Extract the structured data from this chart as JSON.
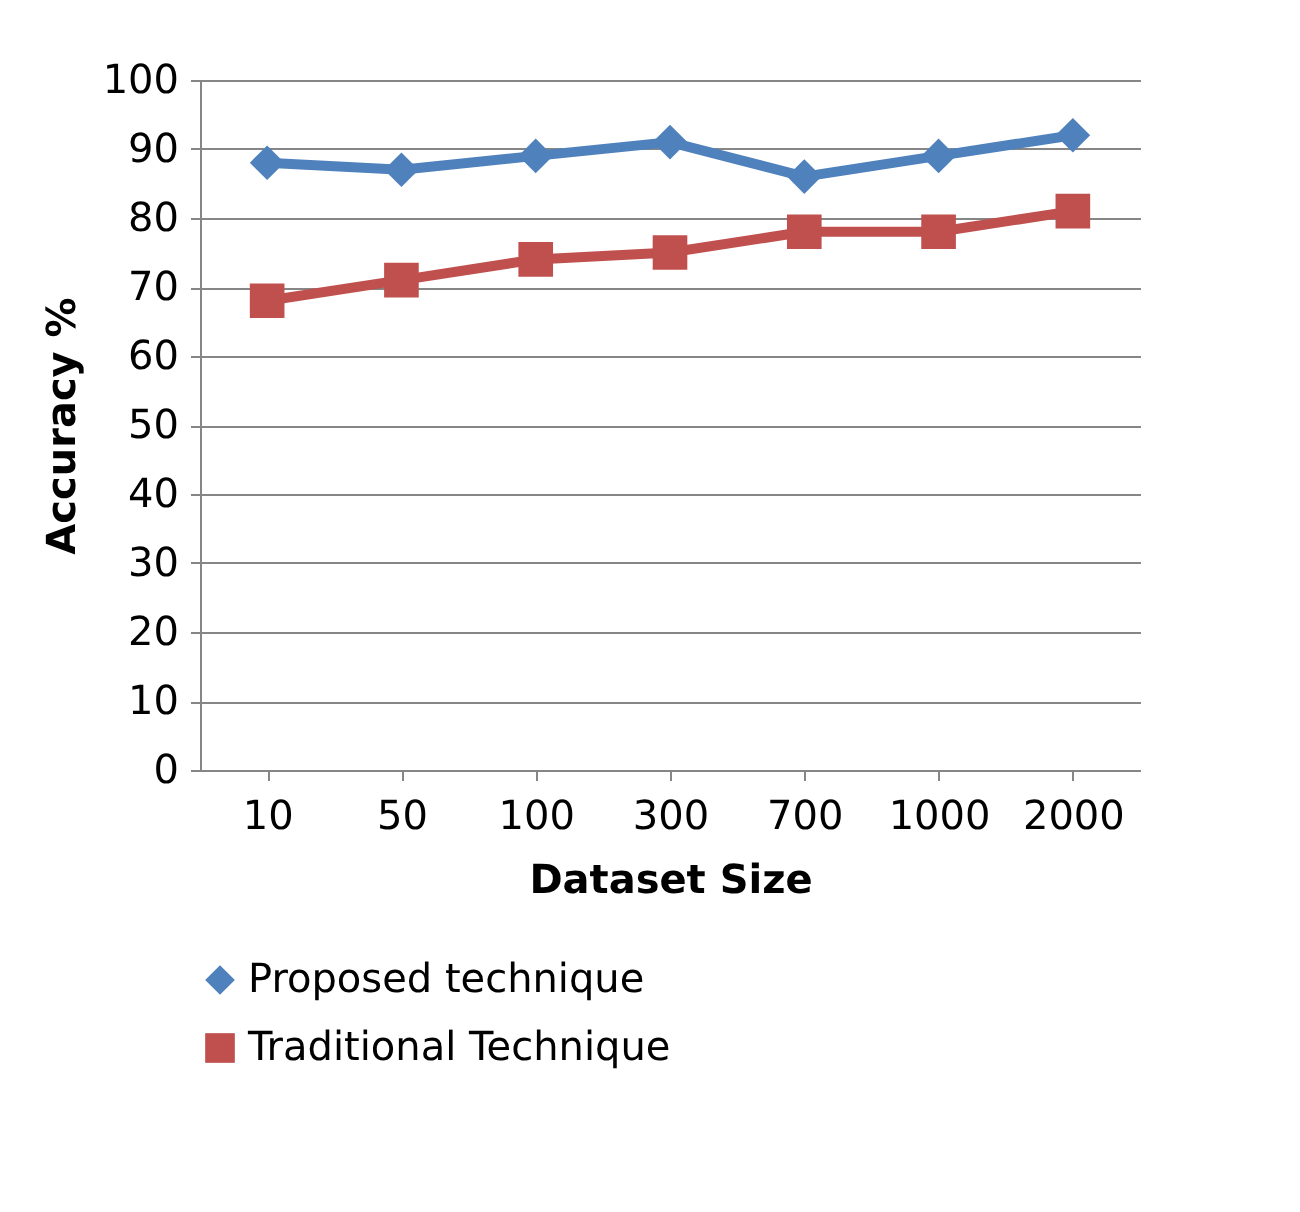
{
  "chart_data": {
    "type": "line",
    "xlabel": "Dataset Size",
    "ylabel": "Accuracy %",
    "categories": [
      "10",
      "50",
      "100",
      "300",
      "700",
      "1000",
      "2000"
    ],
    "series": [
      {
        "name": "Proposed technique",
        "color": "#4f81bd",
        "marker": "diamond",
        "values": [
          88,
          87,
          89,
          91,
          86,
          89,
          92
        ]
      },
      {
        "name": "Traditional Technique",
        "color": "#c0504d",
        "marker": "square",
        "values": [
          68,
          71,
          74,
          75,
          78,
          78,
          81
        ]
      }
    ],
    "ylim": [
      0,
      100
    ],
    "yticks": [
      0,
      10,
      20,
      30,
      40,
      50,
      60,
      70,
      80,
      90,
      100
    ],
    "grid": "y",
    "legend": "bottom"
  }
}
